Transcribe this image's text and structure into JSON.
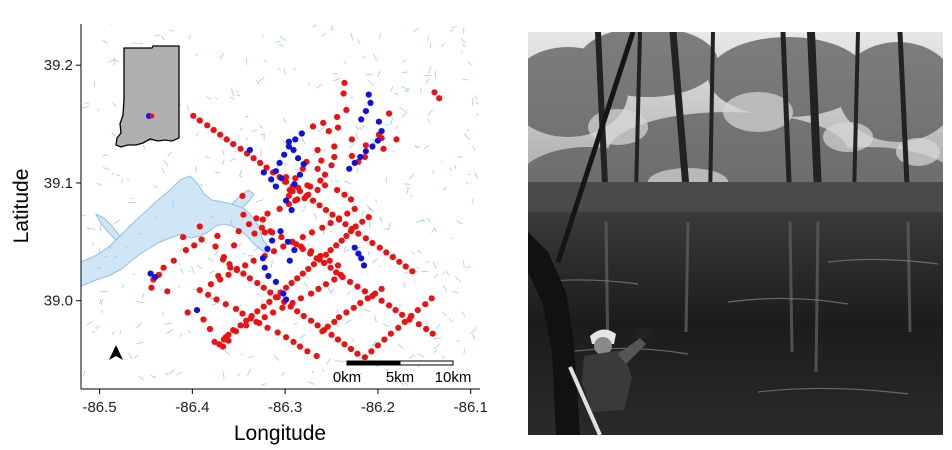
{
  "colors": {
    "red_points": "#ee1111",
    "blue_points": "#1111dd",
    "water": "#cfe6f6",
    "streams": "#7ab3e8",
    "inset_state_fill": "#b0b0b0",
    "axis": "#000000"
  },
  "chart_data": {
    "type": "scatter",
    "title": "",
    "xlabel": "Longitude",
    "ylabel": "Latitude",
    "xlim": [
      -86.52,
      -86.09
    ],
    "ylim": [
      38.925,
      39.235
    ],
    "xticks": [
      -86.5,
      -86.4,
      -86.3,
      -86.2,
      -86.1
    ],
    "yticks": [
      39.0,
      39.1,
      39.2
    ],
    "xtick_labels": [
      "-86.5",
      "-86.4",
      "-86.3",
      "-86.2",
      "-86.1"
    ],
    "ytick_labels": [
      "39.0",
      "39.1",
      "39.2"
    ],
    "grid": false,
    "legend": "none",
    "scalebar_labels": [
      "0km",
      "5km",
      "10km"
    ],
    "inset": "Indiana state outline with study area marked",
    "north_arrow": true,
    "series": [
      {
        "color": "#ee1111",
        "x": [
          -86.237,
          -86.236,
          -86.259,
          -86.27,
          -86.253,
          -86.243,
          -86.247,
          -86.265,
          -86.261,
          -86.277,
          -86.281,
          -86.289,
          -86.286,
          -86.3,
          -86.296,
          -86.279,
          -86.292,
          -86.273,
          -86.262,
          -86.257,
          -86.265,
          -86.25,
          -86.247,
          -86.276,
          -86.289,
          -86.295,
          -86.299,
          -86.234,
          -86.244,
          -86.228,
          -86.228,
          -86.221,
          -86.214,
          -86.213,
          -86.188,
          -86.199,
          -86.196,
          -86.194,
          -86.18,
          -86.139,
          -86.134,
          -86.346,
          -86.345,
          -86.339,
          -86.324,
          -86.333,
          -86.322,
          -86.316,
          -86.35,
          -86.355,
          -86.373,
          -86.375,
          -86.366,
          -86.359,
          -86.372,
          -86.392,
          -86.41,
          -86.39,
          -86.398,
          -86.407,
          -86.42,
          -86.431,
          -86.436,
          -86.442,
          -86.444,
          -86.427,
          -86.405,
          -86.388,
          -86.381,
          -86.376,
          -86.367,
          -86.361,
          -86.364,
          -86.353,
          -86.342,
          -86.331,
          -86.322,
          -86.313,
          -86.303,
          -86.292,
          -86.283,
          -86.272,
          -86.264,
          -86.256,
          -86.247,
          -86.24,
          -86.243,
          -86.252,
          -86.262,
          -86.272,
          -86.283,
          -86.293,
          -86.304,
          -86.314,
          -86.325,
          -86.331,
          -86.319,
          -86.306,
          -86.296,
          -86.287,
          -86.275,
          -86.265,
          -86.257,
          -86.244,
          -86.236,
          -86.229,
          -86.225,
          -86.233,
          -86.242,
          -86.251,
          -86.26,
          -86.271,
          -86.281,
          -86.292,
          -86.302,
          -86.312,
          -86.322,
          -86.334,
          -86.343,
          -86.352,
          -86.361,
          -86.37,
          -86.38,
          -86.392,
          -86.383,
          -86.374,
          -86.364,
          -86.353,
          -86.346,
          -86.337,
          -86.328,
          -86.319,
          -86.308,
          -86.299,
          -86.291,
          -86.284,
          -86.276,
          -86.266,
          -86.26,
          -86.254,
          -86.247,
          -86.242,
          -86.234,
          -86.226,
          -86.219,
          -86.211,
          -86.203,
          -86.196,
          -86.21,
          -86.217,
          -86.224,
          -86.229,
          -86.234,
          -86.239,
          -86.245,
          -86.251,
          -86.256,
          -86.263,
          -86.269,
          -86.275,
          -86.281,
          -86.287,
          -86.293,
          -86.299,
          -86.305,
          -86.31,
          -86.317,
          -86.323,
          -86.33,
          -86.336,
          -86.342,
          -86.348,
          -86.356,
          -86.361,
          -86.366,
          -86.371,
          -86.288,
          -86.281,
          -86.273,
          -86.266,
          -86.258,
          -86.251,
          -86.245,
          -86.238,
          -86.23,
          -86.222,
          -86.214,
          -86.206,
          -86.196,
          -86.188,
          -86.181,
          -86.174,
          -86.166,
          -86.156,
          -86.148,
          -86.141,
          -86.163,
          -86.17,
          -86.177,
          -86.184,
          -86.191,
          -86.198,
          -86.206,
          -86.213,
          -86.221,
          -86.228,
          -86.235,
          -86.242,
          -86.249,
          -86.256,
          -86.263,
          -86.27,
          -86.277,
          -86.284,
          -86.292,
          -86.299,
          -86.306,
          -86.313,
          -86.32,
          -86.327,
          -86.334,
          -86.341,
          -86.348,
          -86.356,
          -86.363,
          -86.37,
          -86.377,
          -86.384,
          -86.392,
          -86.399,
          -86.367,
          -86.36,
          -86.352,
          -86.345,
          -86.338,
          -86.33,
          -86.323,
          -86.316,
          -86.308,
          -86.301,
          -86.294,
          -86.287,
          -86.28,
          -86.272,
          -86.265,
          -86.258,
          -86.25,
          -86.243,
          -86.236,
          -86.229,
          -86.222,
          -86.214,
          -86.207,
          -86.2,
          -86.193,
          -86.186,
          -86.178,
          -86.171,
          -86.164,
          -86.157,
          -86.149,
          -86.142
        ],
        "y": [
          39.176,
          39.185,
          39.151,
          39.148,
          39.144,
          39.147,
          39.131,
          39.128,
          39.119,
          39.118,
          39.112,
          39.104,
          39.096,
          39.101,
          39.089,
          39.087,
          39.093,
          39.097,
          39.102,
          39.107,
          39.112,
          39.115,
          39.122,
          39.098,
          39.085,
          39.094,
          39.105,
          39.162,
          39.156,
          39.137,
          39.123,
          39.118,
          39.122,
          39.132,
          39.159,
          39.141,
          39.138,
          39.129,
          39.137,
          39.177,
          39.172,
          39.089,
          39.073,
          39.065,
          39.069,
          39.057,
          39.058,
          39.059,
          39.059,
          39.047,
          39.055,
          39.046,
          39.037,
          39.028,
          39.021,
          39.063,
          39.054,
          39.052,
          39.047,
          39.043,
          39.034,
          39.028,
          39.022,
          39.018,
          39.011,
          39.008,
          38.99,
          38.984,
          38.976,
          38.965,
          38.961,
          38.966,
          38.969,
          38.974,
          38.979,
          38.982,
          38.986,
          38.99,
          38.994,
          38.998,
          39.002,
          39.006,
          39.01,
          39.014,
          39.018,
          39.022,
          39.03,
          39.034,
          39.038,
          39.042,
          39.046,
          39.05,
          39.054,
          39.058,
          39.062,
          39.07,
          39.074,
          39.078,
          39.082,
          39.086,
          39.09,
          39.094,
          39.098,
          39.094,
          39.09,
          39.086,
          39.078,
          39.074,
          39.07,
          39.066,
          39.062,
          39.058,
          39.054,
          39.05,
          39.046,
          39.042,
          39.038,
          39.034,
          39.03,
          39.026,
          39.022,
          39.018,
          39.014,
          39.009,
          39.005,
          39.001,
          38.997,
          38.993,
          38.989,
          38.985,
          38.981,
          38.977,
          38.973,
          38.969,
          38.965,
          38.961,
          38.957,
          38.953,
          38.974,
          38.978,
          38.982,
          38.986,
          38.99,
          38.994,
          38.998,
          39.002,
          39.006,
          39.01,
          39.071,
          39.067,
          39.063,
          39.059,
          39.055,
          39.051,
          39.047,
          39.043,
          39.039,
          39.035,
          39.031,
          39.027,
          39.023,
          39.019,
          39.015,
          39.011,
          39.007,
          39.003,
          38.999,
          38.995,
          38.991,
          38.987,
          38.983,
          38.979,
          38.975,
          38.971,
          38.967,
          38.963,
          39.048,
          39.044,
          39.04,
          39.036,
          39.032,
          39.028,
          39.024,
          39.02,
          39.016,
          39.012,
          39.008,
          39.004,
          39.0,
          38.996,
          38.992,
          38.988,
          38.984,
          38.98,
          38.976,
          38.972,
          39.025,
          39.029,
          39.033,
          39.037,
          39.041,
          39.045,
          39.049,
          39.053,
          39.057,
          39.061,
          39.065,
          39.069,
          39.073,
          39.077,
          39.081,
          39.085,
          39.089,
          39.093,
          39.097,
          39.101,
          39.105,
          39.109,
          39.113,
          39.117,
          39.121,
          39.125,
          39.129,
          39.133,
          39.137,
          39.141,
          39.145,
          39.149,
          39.153,
          39.157,
          39.035,
          39.031,
          39.027,
          39.023,
          39.019,
          39.015,
          39.011,
          39.007,
          39.003,
          38.999,
          38.995,
          38.991,
          38.987,
          38.983,
          38.979,
          38.975,
          38.971,
          38.967,
          38.963,
          38.959,
          38.955,
          38.952,
          38.957,
          38.962,
          38.967,
          38.972,
          38.977,
          38.982,
          38.987,
          38.992,
          38.997,
          39.002
        ]
      },
      {
        "color": "#1111dd",
        "x": [
          -86.21,
          -86.208,
          -86.213,
          -86.218,
          -86.199,
          -86.196,
          -86.2,
          -86.206,
          -86.213,
          -86.219,
          -86.225,
          -86.231,
          -86.282,
          -86.289,
          -86.296,
          -86.301,
          -86.306,
          -86.31,
          -86.315,
          -86.323,
          -86.338,
          -86.296,
          -86.291,
          -86.286,
          -86.28,
          -86.284,
          -86.29,
          -86.304,
          -86.31,
          -86.299,
          -86.293,
          -86.305,
          -86.314,
          -86.319,
          -86.324,
          -86.322,
          -86.318,
          -86.31,
          -86.302,
          -86.299,
          -86.295,
          -86.29,
          -86.297,
          -86.225,
          -86.221,
          -86.218,
          -86.215,
          -86.445,
          -86.44,
          -86.395
        ],
        "y": [
          39.175,
          39.168,
          39.161,
          39.154,
          39.152,
          39.144,
          39.136,
          39.131,
          39.127,
          39.122,
          39.117,
          39.112,
          39.142,
          39.137,
          39.131,
          39.124,
          39.117,
          39.11,
          39.103,
          39.109,
          39.128,
          39.135,
          39.128,
          39.121,
          39.116,
          39.107,
          39.099,
          39.104,
          39.097,
          39.085,
          39.077,
          39.059,
          39.051,
          39.044,
          39.036,
          39.028,
          39.021,
          39.016,
          39.006,
          39.001,
          39.034,
          39.043,
          39.05,
          39.045,
          39.04,
          39.036,
          39.03,
          39.023,
          39.02,
          38.992
        ]
      }
    ]
  }
}
